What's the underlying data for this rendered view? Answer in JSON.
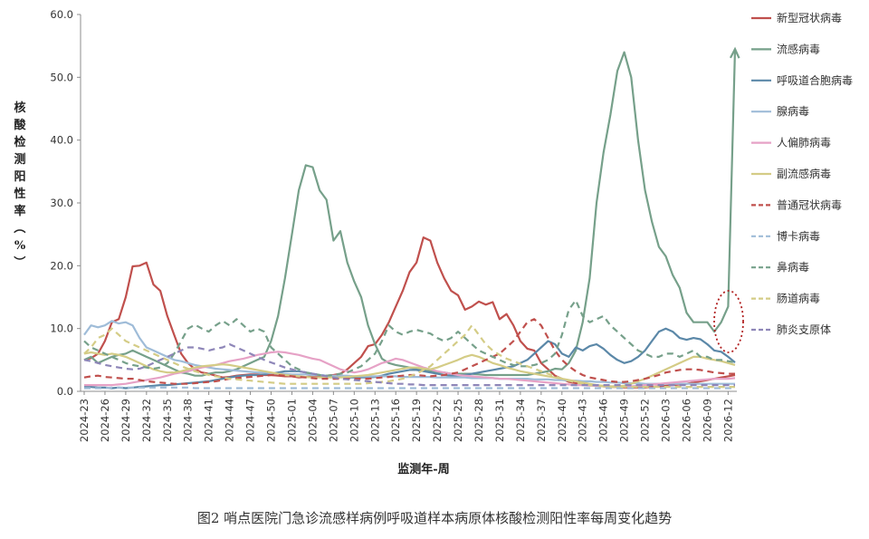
{
  "caption": "图2 哨点医院门急诊流感样病例呼吸道样本病原体核酸检测阳性率每周变化趋势",
  "chart_data": {
    "type": "line",
    "title": "",
    "xlabel": "监测年-周",
    "ylabel": "核酸检测阳性率（%）",
    "ylim": [
      0,
      60
    ],
    "yticks": [
      "0.0",
      "10.0",
      "20.0",
      "30.0",
      "40.0",
      "50.0",
      "60.0"
    ],
    "x_tick_labels": [
      "2024-23",
      "2024-26",
      "2024-29",
      "2024-32",
      "2024-35",
      "2024-38",
      "2024-41",
      "2024-44",
      "2024-47",
      "2024-50",
      "2025-01",
      "2025-04",
      "2025-07",
      "2025-10",
      "2025-13",
      "2025-16",
      "2025-19",
      "2025-22",
      "2025-25",
      "2025-28",
      "2025-31",
      "2025-34",
      "2025-37",
      "2025-40",
      "2025-43",
      "2025-46",
      "2025-49",
      "2025-52",
      "2026-03",
      "2026-06",
      "2026-09",
      "2026-12"
    ],
    "num_weeks": 95,
    "legend_position": "right",
    "grid": false,
    "series": [
      {
        "name": "新型冠状病毒",
        "color": "#c0504d",
        "dash": "solid",
        "values": [
          5,
          5.3,
          6,
          8,
          11,
          11.5,
          15,
          19.9,
          20,
          20.5,
          17,
          16,
          12,
          9,
          6,
          4.5,
          3.5,
          3,
          2.8,
          2.5,
          2.2,
          2.3,
          2.5,
          2.6,
          2.7,
          2.7,
          2.6,
          2.6,
          2.5,
          2.4,
          2.4,
          2.2,
          2.3,
          2.4,
          2.4,
          2.5,
          2.6,
          2.8,
          3.5,
          4.5,
          5.5,
          7.2,
          7.5,
          9,
          11,
          13.5,
          16,
          19,
          20.5,
          24.5,
          24,
          20.5,
          18,
          16,
          15.3,
          13,
          13.5,
          14.3,
          13.8,
          14.2,
          11.5,
          12.3,
          10.5,
          8,
          6.8,
          6.5,
          4.5,
          3.5,
          2.5,
          2,
          1.5,
          1.3,
          1.1,
          1,
          0.9,
          0.8,
          0.7,
          0.7,
          0.6,
          0.6,
          0.6,
          0.6,
          0.7,
          0.8,
          0.9,
          1,
          1.1,
          1.2,
          1.4,
          1.6,
          1.8,
          2,
          2.2,
          2.4,
          2.6
        ]
      },
      {
        "name": "流感病毒",
        "color": "#76a08a",
        "dash": "solid",
        "values": [
          5,
          5.5,
          4.5,
          5,
          5.5,
          5.8,
          6,
          6.5,
          6,
          5.5,
          5,
          4.5,
          4,
          3.5,
          3,
          2.8,
          2.5,
          2.5,
          2.8,
          3,
          3,
          3.2,
          3.5,
          4,
          4.5,
          5,
          5.5,
          8,
          12,
          18,
          25,
          32,
          36,
          35.7,
          32,
          30.5,
          24,
          25.5,
          20.5,
          17.5,
          15,
          10.5,
          7.5,
          5.2,
          4.5,
          4.2,
          4,
          3.8,
          3.6,
          3.4,
          3.2,
          3,
          3,
          2.8,
          2.8,
          2.8,
          2.8,
          2.7,
          2.6,
          2.6,
          2.6,
          2.6,
          2.6,
          2.6,
          2.6,
          2.8,
          3,
          3.2,
          3.6,
          3.5,
          4.5,
          6.5,
          11,
          18,
          30,
          38,
          44,
          51,
          54,
          50,
          40,
          32,
          27,
          23,
          21.5,
          18.5,
          16.5,
          12.5,
          11,
          11,
          11,
          9.5,
          11,
          13.5,
          54.5
        ]
      },
      {
        "name": "呼吸道合胞病毒",
        "color": "#5b88a8",
        "dash": "solid",
        "values": [
          0.8,
          0.7,
          0.6,
          0.6,
          0.5,
          0.6,
          0.5,
          0.6,
          0.7,
          0.8,
          0.9,
          1,
          1,
          1.1,
          1.2,
          1.3,
          1.4,
          1.5,
          1.6,
          1.8,
          2,
          2.2,
          2.4,
          2.5,
          2.6,
          2.6,
          2.7,
          2.8,
          3,
          3.2,
          3.2,
          3.2,
          3,
          2.8,
          2.6,
          2.5,
          2.4,
          2.3,
          2.2,
          2.2,
          2.2,
          2.2,
          2.3,
          2.5,
          2.8,
          3,
          3.2,
          3.4,
          3.4,
          3.2,
          3,
          2.8,
          2.6,
          2.5,
          2.5,
          2.6,
          2.8,
          3,
          3.2,
          3.4,
          3.6,
          3.8,
          4,
          4.5,
          5,
          6,
          7,
          8,
          7.5,
          6,
          5.5,
          7,
          6.5,
          7.2,
          7.5,
          6.8,
          5.8,
          5,
          4.5,
          4.8,
          5.5,
          6.5,
          8,
          9.5,
          10,
          9.5,
          8.5,
          8.2,
          8.5,
          8.3,
          7.5,
          6.5,
          6.3,
          5.5,
          4.6
        ]
      },
      {
        "name": "腺病毒",
        "color": "#9fbcd8",
        "dash": "solid",
        "values": [
          9,
          10.5,
          10.2,
          10.5,
          11.2,
          10.8,
          11,
          10.5,
          8.5,
          7,
          6.5,
          6,
          5.5,
          5,
          4.8,
          4.5,
          4.2,
          4,
          3.8,
          3.6,
          3.5,
          3.4,
          3.3,
          3.2,
          3.1,
          3,
          3,
          2.9,
          2.8,
          2.8,
          2.7,
          2.7,
          2.7,
          2.6,
          2.6,
          2.5,
          2.5,
          2.5,
          2.5,
          2.4,
          2.4,
          2.4,
          2.4,
          2.4,
          2.4,
          2.4,
          2.3,
          2.3,
          2.3,
          2.3,
          2.3,
          2.2,
          2.2,
          2.2,
          2.2,
          2.2,
          2.1,
          2.1,
          2.1,
          2.1,
          2,
          2,
          2,
          2,
          2,
          1.9,
          1.9,
          1.9,
          1.8,
          1.8,
          1.7,
          1.7,
          1.6,
          1.6,
          1.5,
          1.5,
          1.4,
          1.4,
          1.3,
          1.3,
          1.3,
          1.2,
          1.2,
          1.2,
          1.2,
          1.2,
          1.2,
          1.2,
          1.2,
          1.2,
          1.2,
          1.2,
          1.2,
          1.2,
          1.2
        ]
      },
      {
        "name": "人偏肺病毒",
        "color": "#e6a2c6",
        "dash": "solid",
        "values": [
          1,
          1,
          1,
          1,
          1,
          1.1,
          1.2,
          1.4,
          1.6,
          1.8,
          2,
          2.2,
          2.5,
          2.8,
          3,
          3.2,
          3.5,
          3.8,
          4,
          4.2,
          4.5,
          4.8,
          5,
          5.2,
          5.5,
          5.8,
          6,
          6.2,
          6.3,
          6.2,
          6,
          5.8,
          5.5,
          5.2,
          5,
          4.5,
          4,
          3.5,
          3.2,
          3,
          3.2,
          3.5,
          4,
          4.5,
          4.8,
          5.2,
          5,
          4.6,
          4.2,
          3.8,
          3.5,
          3.2,
          3,
          2.8,
          2.6,
          2.5,
          2.4,
          2.3,
          2.2,
          2.1,
          2,
          2,
          1.9,
          1.8,
          1.7,
          1.6,
          1.5,
          1.4,
          1.3,
          1.2,
          1.1,
          1,
          1,
          0.9,
          0.9,
          0.8,
          0.8,
          0.8,
          0.8,
          0.8,
          0.9,
          1,
          1.1,
          1.2,
          1.3,
          1.4,
          1.5,
          1.6,
          1.7,
          1.8,
          1.9,
          2,
          2,
          2,
          2.1
        ]
      },
      {
        "name": "副流感病毒",
        "color": "#d4cc86",
        "dash": "solid",
        "values": [
          6,
          6.2,
          6,
          5.8,
          6,
          5.8,
          5.5,
          5,
          4.5,
          4,
          3.5,
          3.2,
          3,
          3,
          3.2,
          3.5,
          3.8,
          4,
          4.1,
          4.2,
          4.3,
          4.2,
          4,
          3.8,
          3.6,
          3.4,
          3.2,
          3,
          2.8,
          2.6,
          2.5,
          2.4,
          2.3,
          2.2,
          2.2,
          2.2,
          2.2,
          2.2,
          2.3,
          2.4,
          2.5,
          2.6,
          2.8,
          3,
          3.2,
          3.4,
          3.6,
          3.8,
          3.8,
          3.6,
          3.5,
          3.8,
          4.2,
          4.6,
          5,
          5.5,
          5.8,
          5.5,
          5,
          4.5,
          4.2,
          3.8,
          3.5,
          3.2,
          3,
          2.8,
          2.6,
          2.4,
          2.2,
          2,
          1.8,
          1.6,
          1.4,
          1.2,
          1,
          0.9,
          0.8,
          0.8,
          0.9,
          1.2,
          1.6,
          2,
          2.5,
          3,
          3.5,
          4,
          4.5,
          5,
          5.5,
          5.5,
          5.2,
          5,
          4.8,
          4.5,
          4.2
        ]
      },
      {
        "name": "普通冠状病毒",
        "color": "#c0504d",
        "dash": "dashed",
        "values": [
          2.2,
          2.4,
          2.5,
          2.3,
          2.2,
          2.1,
          2,
          2,
          1.8,
          1.6,
          1.5,
          1.4,
          1.3,
          1.2,
          1.2,
          1.2,
          1.3,
          1.4,
          1.5,
          1.6,
          1.8,
          2,
          2.1,
          2.2,
          2.3,
          2.4,
          2.5,
          2.6,
          2.6,
          2.5,
          2.4,
          2.3,
          2.2,
          2.1,
          2,
          2,
          2,
          2,
          2,
          2,
          2,
          2,
          2.1,
          2.2,
          2.3,
          2.4,
          2.5,
          2.6,
          2.6,
          2.5,
          2.4,
          2.5,
          2.6,
          2.8,
          3,
          3.5,
          4,
          4.5,
          5,
          5.5,
          6,
          7,
          8,
          9.5,
          11,
          11.5,
          10.5,
          8.5,
          6.5,
          5,
          4,
          3.2,
          2.6,
          2.2,
          2,
          1.8,
          1.6,
          1.5,
          1.5,
          1.6,
          1.8,
          2,
          2.3,
          2.6,
          3,
          3.2,
          3.4,
          3.5,
          3.5,
          3.4,
          3.2,
          3,
          2.9,
          2.8,
          2.8
        ]
      },
      {
        "name": "博卡病毒",
        "color": "#9fbcd8",
        "dash": "dashed",
        "values": [
          0.5,
          0.5,
          0.5,
          0.5,
          0.6,
          0.6,
          0.6,
          0.6,
          0.6,
          0.6,
          0.6,
          0.6,
          0.6,
          0.6,
          0.6,
          0.6,
          0.5,
          0.5,
          0.5,
          0.5,
          0.5,
          0.5,
          0.5,
          0.5,
          0.5,
          0.5,
          0.5,
          0.5,
          0.5,
          0.5,
          0.5,
          0.5,
          0.5,
          0.5,
          0.5,
          0.5,
          0.5,
          0.5,
          0.5,
          0.5,
          0.5,
          0.5,
          0.5,
          0.5,
          0.5,
          0.5,
          0.5,
          0.5,
          0.5,
          0.5,
          0.5,
          0.5,
          0.5,
          0.5,
          0.5,
          0.5,
          0.5,
          0.5,
          0.5,
          0.5,
          0.5,
          0.5,
          0.5,
          0.5,
          0.5,
          0.5,
          0.5,
          0.5,
          0.5,
          0.5,
          0.5,
          0.5,
          0.5,
          0.5,
          0.5,
          0.5,
          0.5,
          0.5,
          0.5,
          0.5,
          0.5,
          0.5,
          0.5,
          0.5,
          0.5,
          0.5,
          0.5,
          0.5,
          0.5,
          0.5,
          0.5,
          0.5,
          0.5,
          0.5,
          0.5
        ]
      },
      {
        "name": "鼻病毒",
        "color": "#76a08a",
        "dash": "dashed",
        "values": [
          8,
          7,
          6.5,
          6,
          5.5,
          5,
          4.5,
          4.2,
          4,
          3.8,
          3.6,
          3.8,
          4.5,
          6,
          8,
          10,
          10.6,
          10,
          9.5,
          10.5,
          11.2,
          10.5,
          11.5,
          10.5,
          9.5,
          10,
          9.5,
          7,
          6,
          5,
          4,
          3.5,
          3,
          2.8,
          2.6,
          2.5,
          2.6,
          2.8,
          3,
          3.5,
          4,
          5,
          6,
          8,
          10.5,
          9.5,
          9,
          9.5,
          9.8,
          9.5,
          9.2,
          8.5,
          8,
          8.5,
          9.5,
          8.5,
          7.5,
          6.5,
          6,
          5.5,
          5,
          4.5,
          4.2,
          4,
          4,
          4.2,
          4.5,
          5,
          6,
          9,
          13,
          14.5,
          12,
          11,
          11.5,
          12,
          10.5,
          9.5,
          8.5,
          7.5,
          6.5,
          6,
          5.5,
          5.5,
          6,
          6,
          5.5,
          6,
          6.5,
          5.5,
          5.5,
          5,
          5,
          4.8,
          4.6
        ]
      },
      {
        "name": "肠道病毒",
        "color": "#d4cc86",
        "dash": "dashed",
        "values": [
          6,
          7,
          8.5,
          9,
          10,
          9,
          8,
          7.5,
          7,
          6.5,
          6,
          5.5,
          5,
          4.5,
          4,
          3.6,
          3.2,
          2.9,
          2.6,
          2.4,
          2.2,
          2,
          1.9,
          1.8,
          1.7,
          1.6,
          1.5,
          1.4,
          1.3,
          1.2,
          1.2,
          1.2,
          1.2,
          1.2,
          1.2,
          1.2,
          1.2,
          1.2,
          1.2,
          1.2,
          1.2,
          1.3,
          1.4,
          1.5,
          1.6,
          1.8,
          2,
          2.4,
          2.8,
          3.4,
          4,
          5,
          6,
          7,
          8,
          9,
          10.5,
          9,
          7.5,
          6.5,
          5.8,
          5.2,
          4.8,
          4.4,
          4,
          3.6,
          3.2,
          2.8,
          2.4,
          2,
          1.7,
          1.4,
          1.2,
          1,
          0.9,
          0.8,
          0.7,
          0.7,
          0.7,
          0.7,
          0.7,
          0.7,
          0.7,
          0.7,
          0.7,
          0.7,
          0.7,
          0.7,
          0.7,
          0.7,
          0.7,
          0.7,
          0.7,
          0.7,
          0.7
        ]
      },
      {
        "name": "肺炎支原体",
        "color": "#8e86b8",
        "dash": "dashed",
        "values": [
          5,
          4.8,
          4.5,
          4.2,
          4,
          3.8,
          3.6,
          3.5,
          3.6,
          4,
          4.5,
          5,
          5.5,
          6,
          6.5,
          7,
          7,
          6.8,
          6.5,
          6.8,
          7,
          7.5,
          7,
          6.5,
          6,
          5.5,
          5,
          4.6,
          4.2,
          3.8,
          3.5,
          3.2,
          3,
          2.8,
          2.6,
          2.4,
          2.2,
          2,
          1.9,
          1.8,
          1.7,
          1.6,
          1.5,
          1.4,
          1.3,
          1.2,
          1.2,
          1.1,
          1.1,
          1,
          1,
          1,
          1,
          1,
          1,
          1,
          1,
          1,
          1,
          1,
          1,
          1,
          1,
          1,
          1,
          1,
          1,
          1,
          1,
          1,
          1,
          1,
          1,
          1,
          1,
          1,
          1,
          1,
          1,
          1,
          1,
          1,
          1,
          1,
          1,
          1,
          1,
          1,
          1,
          1,
          1,
          1,
          1,
          1,
          1
        ]
      }
    ]
  }
}
